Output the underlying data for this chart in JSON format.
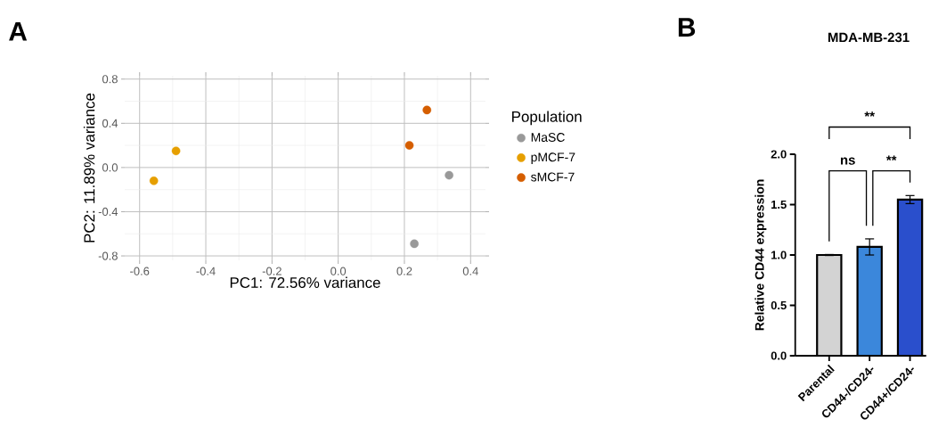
{
  "chart_data": [
    {
      "type": "scatter",
      "xlabel": "PC1: 72.56% variance",
      "ylabel": "PC2: 11.89% variance",
      "legend_title": "Population",
      "annotations": [
        "A"
      ],
      "series": [
        {
          "name": "MaSC",
          "color": "#999999",
          "x": [
            0.335,
            0.23
          ],
          "values": [
            -0.07,
            -0.69
          ]
        },
        {
          "name": "pMCF-7",
          "color": "#e69f00",
          "x": [
            -0.557,
            -0.49
          ],
          "values": [
            -0.12,
            0.15
          ]
        },
        {
          "name": "sMCF-7",
          "color": "#d55e00",
          "x": [
            0.215,
            0.268
          ],
          "values": [
            0.2,
            0.52
          ]
        }
      ],
      "xlim": [
        -0.645,
        0.445
      ],
      "ylim": [
        -0.84,
        0.83
      ],
      "xticks": [
        -0.6,
        -0.4,
        -0.2,
        {
          "value": 0,
          "label": "0.0"
        },
        0.2,
        0.4
      ],
      "yticks": [
        -0.8,
        -0.4,
        {
          "value": 0,
          "label": "0.0"
        },
        0.4,
        0.8
      ],
      "grid": true,
      "legend": "right",
      "marker": "circle"
    },
    {
      "type": "bar",
      "title": "MDA-MB-231",
      "ylabel": "Relative CD44 expression",
      "annotations": [
        "B",
        "**",
        "ns",
        "**"
      ],
      "categories": [
        "Parental",
        "CD44-/CD24-",
        "CD44+/CD24-"
      ],
      "values": [
        1.0,
        1.08,
        1.55
      ],
      "errors": [
        0.005,
        0.08,
        0.04
      ],
      "colors": [
        "#d3d3d3",
        "#3b87db",
        "#2a4fcc"
      ],
      "ylim": [
        0,
        2
      ],
      "yticks": [
        {
          "value": 0,
          "label": "0.0"
        },
        0.5,
        {
          "value": 1,
          "label": "1.0"
        },
        1.5,
        {
          "value": 2,
          "label": "2.0"
        }
      ]
    }
  ]
}
